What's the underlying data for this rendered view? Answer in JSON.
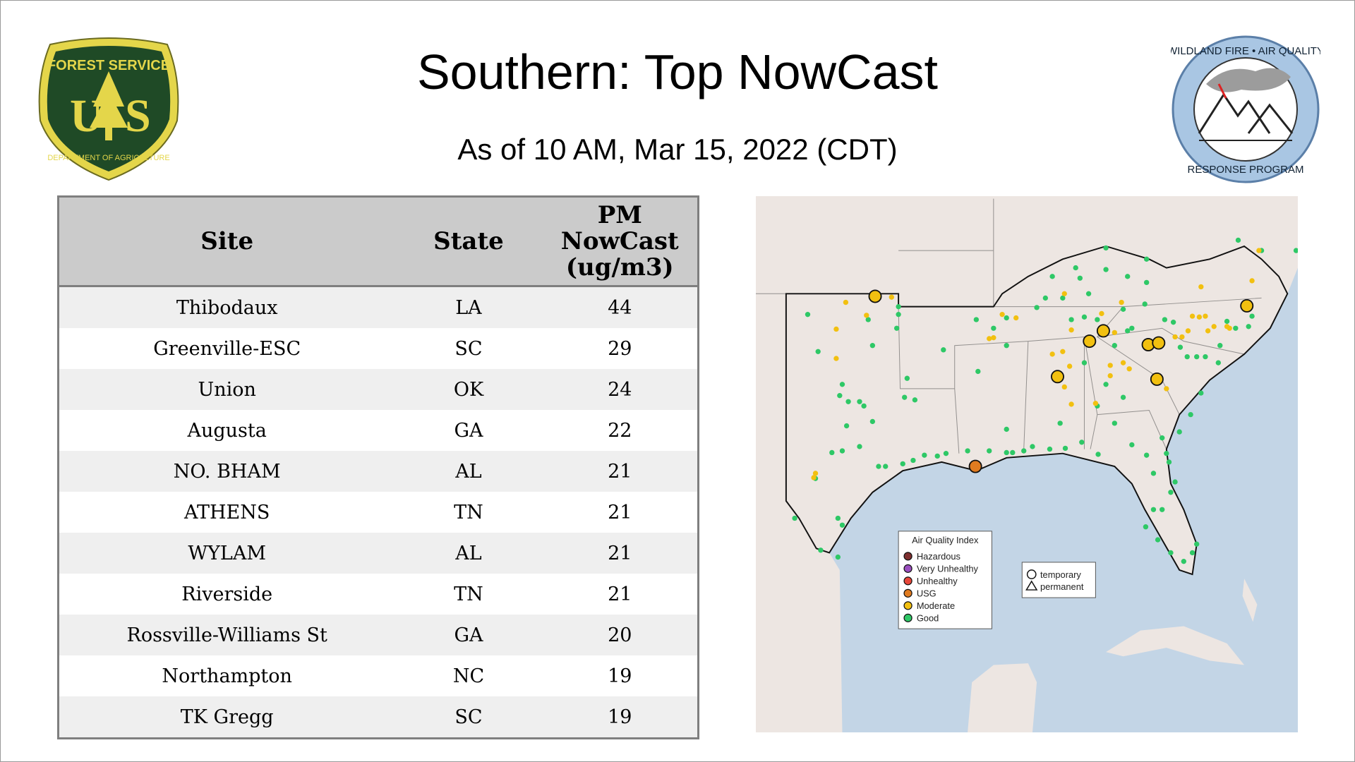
{
  "header": {
    "title": "Southern: Top NowCast",
    "subtitle": "As of 10 AM, Mar 15, 2022 (CDT)"
  },
  "logos": {
    "left": "Forest Service U.S. Department of Agriculture",
    "right": "Wildland Fire Air Quality Response Program"
  },
  "table": {
    "headers": [
      "Site",
      "State",
      "PM NowCast (ug/m3)"
    ],
    "rows": [
      {
        "site": "Thibodaux",
        "state": "LA",
        "value": "44"
      },
      {
        "site": "Greenville-ESC",
        "state": "SC",
        "value": "29"
      },
      {
        "site": "Union",
        "state": "OK",
        "value": "24"
      },
      {
        "site": "Augusta",
        "state": "GA",
        "value": "22"
      },
      {
        "site": "NO. BHAM",
        "state": "AL",
        "value": "21"
      },
      {
        "site": "ATHENS",
        "state": "TN",
        "value": "21"
      },
      {
        "site": "WYLAM",
        "state": "AL",
        "value": "21"
      },
      {
        "site": "Riverside",
        "state": "TN",
        "value": "21"
      },
      {
        "site": "Rossville-Williams St",
        "state": "GA",
        "value": "20"
      },
      {
        "site": "Northampton",
        "state": "NC",
        "value": "19"
      },
      {
        "site": "TK Gregg",
        "state": "SC",
        "value": "19"
      }
    ]
  },
  "map": {
    "legend_title": "Air Quality Index",
    "legend": [
      {
        "label": "Hazardous",
        "color": "#7e2f2f"
      },
      {
        "label": "Very Unhealthy",
        "color": "#9b4fc0"
      },
      {
        "label": "Unhealthy",
        "color": "#e8473a"
      },
      {
        "label": "USG",
        "color": "#e07b20"
      },
      {
        "label": "Moderate",
        "color": "#f2c010"
      },
      {
        "label": "Good",
        "color": "#2ec866"
      }
    ],
    "shape_legend": [
      {
        "label": "temporary",
        "shape": "circle"
      },
      {
        "label": "permanent",
        "shape": "triangle"
      }
    ],
    "colors": {
      "land": "#ede6e2",
      "water": "#c3d5e6",
      "good": "#2ec866",
      "moderate": "#f2c010",
      "usg": "#e07b20"
    }
  }
}
